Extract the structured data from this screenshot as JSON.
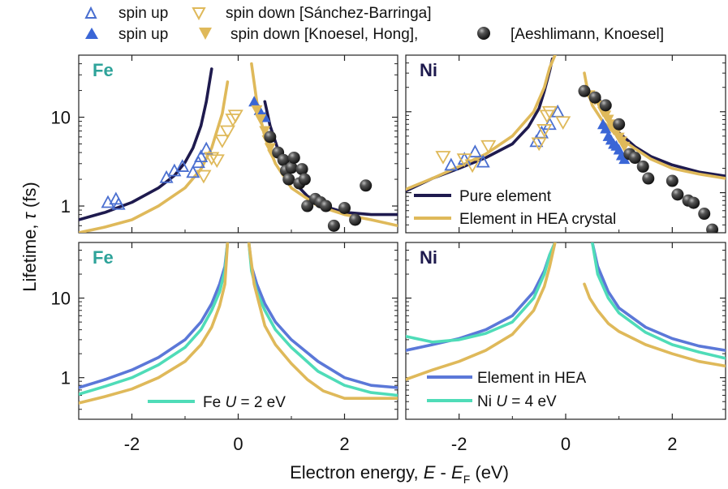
{
  "colors": {
    "open_blue": "#4a6fd0",
    "filled_blue": "#3a66d6",
    "gold": "#dfb95a",
    "navy": "#1e1a4e",
    "teal_line": "#4fdcb8",
    "blue_line": "#5b78d8",
    "sphere": "#2b2b2b",
    "fe_label": "#2ea39a",
    "ni_label": "#1e1a4e"
  },
  "top_legend": [
    {
      "marker": "open-triangle-up",
      "label": "spin up"
    },
    {
      "marker": "open-triangle-down",
      "label": "spin down [Sánchez-Barringa]"
    },
    {
      "marker": "filled-triangle-up",
      "label": "spin up"
    },
    {
      "marker": "filled-triangle-down",
      "label": "spin down [Knoesel, Hong],"
    },
    {
      "marker": "sphere",
      "label": "[Aeshlimann, Knoesel]"
    }
  ],
  "chart_data": [
    {
      "id": "fe_top",
      "type": "line",
      "panel_label": "Fe",
      "xlim": [
        -3,
        3
      ],
      "ylim": [
        0.5,
        50
      ],
      "yscale": "log",
      "xticks": [
        -2,
        0,
        2
      ],
      "yticks": [
        1,
        10
      ],
      "series": [
        {
          "name": "Pure element",
          "color": "navy",
          "segments": [
            {
              "x": [
                -3.0,
                -2.5,
                -2.0,
                -1.5,
                -1.2,
                -1.0,
                -0.85,
                -0.7,
                -0.6,
                -0.5
              ],
              "y": [
                0.7,
                0.85,
                1.1,
                1.6,
                2.2,
                3.1,
                4.5,
                8.0,
                15.0,
                35.0
              ]
            },
            {
              "x": [
                0.5,
                0.6,
                0.8,
                1.0,
                1.3,
                1.6,
                2.0,
                2.5,
                3.0
              ],
              "y": [
                15.0,
                8.0,
                3.5,
                2.0,
                1.3,
                1.0,
                0.85,
                0.8,
                0.8
              ]
            }
          ]
        },
        {
          "name": "Element in HEA crystal",
          "color": "gold",
          "segments": [
            {
              "x": [
                -3.0,
                -2.5,
                -2.0,
                -1.5,
                -1.0,
                -0.7,
                -0.5,
                -0.3,
                -0.2
              ],
              "y": [
                0.5,
                0.58,
                0.7,
                1.0,
                1.6,
                2.6,
                4.5,
                11.0,
                25.0
              ]
            },
            {
              "x": [
                0.25,
                0.35,
                0.5,
                0.7,
                1.0,
                1.5,
                2.0,
                2.5,
                3.0
              ],
              "y": [
                40.0,
                15.0,
                6.0,
                3.0,
                1.6,
                1.0,
                0.8,
                0.7,
                0.6
              ]
            }
          ]
        }
      ],
      "scatter": [
        {
          "name": "spin up (open)",
          "marker": "open-triangle-up",
          "color": "open_blue",
          "x": [
            -2.45,
            -2.3,
            -2.25,
            -1.35,
            -1.2,
            -1.05,
            -0.85,
            -0.75,
            -0.7,
            -0.6
          ],
          "y": [
            1.1,
            1.2,
            1.05,
            2.1,
            2.5,
            2.8,
            2.4,
            3.1,
            3.6,
            4.4
          ]
        },
        {
          "name": "spin down (open)",
          "marker": "open-triangle-down",
          "color": "gold",
          "x": [
            -0.65,
            -0.5,
            -0.4,
            -0.3,
            -0.2,
            -0.1,
            -0.05
          ],
          "y": [
            2.2,
            3.5,
            3.3,
            5.5,
            7.0,
            9.5,
            10.5
          ]
        },
        {
          "name": "spin up (filled)",
          "marker": "filled-triangle-up",
          "color": "filled_blue",
          "x": [
            0.3,
            0.4,
            0.5
          ],
          "y": [
            15.0,
            12.0,
            10.0
          ]
        },
        {
          "name": "spin down (filled)",
          "marker": "filled-triangle-down",
          "color": "gold",
          "x": [
            0.35,
            0.42,
            0.5,
            0.55,
            0.6,
            0.65
          ],
          "y": [
            12.0,
            9.5,
            7.0,
            5.5,
            4.5,
            3.8
          ]
        },
        {
          "name": "Aeshlimann, Knoesel",
          "marker": "sphere",
          "color": "sphere",
          "x": [
            0.6,
            0.75,
            0.85,
            0.9,
            0.95,
            1.0,
            1.05,
            1.15,
            1.2,
            1.25,
            1.3,
            1.45,
            1.55,
            1.65,
            1.8,
            2.0,
            2.2,
            2.4
          ],
          "y": [
            6.0,
            4.0,
            3.3,
            2.5,
            2.0,
            2.7,
            3.5,
            1.8,
            2.6,
            2.0,
            1.0,
            1.2,
            1.1,
            1.0,
            0.6,
            0.95,
            0.7,
            1.7
          ]
        }
      ]
    },
    {
      "id": "ni_top",
      "type": "line",
      "panel_label": "Ni",
      "xlim": [
        -3,
        3
      ],
      "ylim": [
        0.32,
        50
      ],
      "yscale": "log",
      "xticks": [
        -2,
        0,
        2
      ],
      "yticks": [
        1,
        10
      ],
      "legend": [
        "Pure element",
        "Element in HEA crystal"
      ],
      "series": [
        {
          "name": "Pure element",
          "color": "navy",
          "segments": [
            {
              "x": [
                -3.0,
                -2.5,
                -2.0,
                -1.5,
                -1.0,
                -0.7,
                -0.5,
                -0.4,
                -0.3,
                -0.25
              ],
              "y": [
                1.05,
                1.5,
                2.0,
                2.7,
                4.0,
                6.5,
                11.0,
                18.0,
                32.0,
                45.0
              ]
            },
            {
              "x": [
                0.6,
                0.7,
                0.8,
                1.0,
                1.3,
                1.6,
                2.0,
                2.5,
                3.0
              ],
              "y": [
                16.0,
                11.0,
                8.5,
                5.5,
                3.7,
                2.8,
                2.2,
                1.8,
                1.6
              ]
            }
          ]
        },
        {
          "name": "Element in HEA crystal",
          "color": "gold",
          "segments": [
            {
              "x": [
                -3.0,
                -2.5,
                -2.0,
                -1.5,
                -1.0,
                -0.6,
                -0.4,
                -0.3,
                -0.2
              ],
              "y": [
                1.1,
                1.5,
                2.1,
                3.0,
                5.0,
                10.0,
                20.0,
                35.0,
                50.0
              ]
            },
            {
              "x": [
                0.35,
                0.4,
                0.5,
                0.7,
                1.0,
                1.3,
                1.6,
                2.0,
                2.5,
                3.0
              ],
              "y": [
                30.0,
                20.0,
                12.0,
                7.5,
                4.8,
                3.5,
                2.6,
                2.0,
                1.7,
                1.5
              ]
            }
          ]
        }
      ],
      "scatter": [
        {
          "name": "spin up (open)",
          "marker": "open-triangle-up",
          "color": "open_blue",
          "x": [
            -2.15,
            -1.9,
            -1.7,
            -1.55,
            -0.55,
            -0.45,
            -0.3,
            -0.15
          ],
          "y": [
            2.2,
            2.6,
            3.2,
            2.4,
            4.3,
            5.5,
            7.0,
            10.0
          ]
        },
        {
          "name": "spin down (open)",
          "marker": "open-triangle-down",
          "color": "gold",
          "x": [
            -2.3,
            -1.9,
            -1.75,
            -1.45,
            -0.5,
            -0.4,
            -0.35,
            -0.3,
            -0.05
          ],
          "y": [
            2.8,
            2.6,
            2.2,
            3.8,
            4.1,
            6.0,
            9.0,
            10.0,
            7.5
          ]
        },
        {
          "name": "spin up (filled)",
          "marker": "filled-triangle-up",
          "color": "filled_blue",
          "x": [
            0.7,
            0.75,
            0.8,
            0.85,
            0.9,
            0.95,
            1.0,
            1.05,
            1.1
          ],
          "y": [
            7.0,
            6.2,
            5.0,
            4.5,
            4.0,
            3.8,
            3.4,
            2.9,
            2.6
          ]
        },
        {
          "name": "spin down (filled)",
          "marker": "filled-triangle-down",
          "color": "gold",
          "x": [
            0.45,
            0.55,
            0.65,
            0.7,
            0.75,
            0.8,
            0.85,
            0.9,
            0.95,
            1.0,
            1.05,
            1.1
          ],
          "y": [
            16.0,
            14.0,
            12.0,
            10.0,
            9.0,
            8.0,
            7.0,
            6.0,
            5.5,
            4.8,
            4.3,
            3.7
          ]
        },
        {
          "name": "Aeshlimann, Knoesel",
          "marker": "sphere",
          "color": "sphere",
          "x": [
            0.35,
            0.55,
            0.75,
            1.0,
            1.2,
            1.3,
            1.45,
            1.55,
            2.0,
            2.1,
            2.3,
            2.4,
            2.6,
            2.75
          ],
          "y": [
            18.0,
            15.0,
            12.0,
            7.0,
            3.0,
            2.7,
            2.1,
            1.5,
            1.4,
            0.95,
            0.8,
            0.75,
            0.55,
            0.35
          ]
        }
      ]
    },
    {
      "id": "fe_bottom",
      "type": "line",
      "panel_label": "Fe",
      "xlim": [
        -3,
        3
      ],
      "ylim": [
        0.3,
        50
      ],
      "yscale": "log",
      "xticks": [
        -2,
        0,
        2
      ],
      "yticks": [
        1,
        10
      ],
      "legend": [
        "Fe U = 2 eV"
      ],
      "series": [
        {
          "name": "Element in HEA",
          "color": "blue_line",
          "segments": [
            {
              "x": [
                -3.0,
                -2.5,
                -2.0,
                -1.5,
                -1.0,
                -0.7,
                -0.5,
                -0.35,
                -0.25,
                -0.2
              ],
              "y": [
                0.75,
                0.95,
                1.25,
                1.8,
                3.0,
                5.0,
                8.5,
                15.0,
                25.0,
                50.0
              ]
            },
            {
              "x": [
                0.2,
                0.25,
                0.35,
                0.5,
                0.7,
                1.0,
                1.5,
                2.0,
                2.5,
                3.0
              ],
              "y": [
                50.0,
                25.0,
                15.0,
                8.5,
                5.0,
                3.0,
                1.6,
                1.0,
                0.8,
                0.75
              ]
            }
          ]
        },
        {
          "name": "Fe U = 2 eV",
          "color": "teal_line",
          "segments": [
            {
              "x": [
                -3.0,
                -2.5,
                -2.0,
                -1.5,
                -1.0,
                -0.7,
                -0.5,
                -0.35,
                -0.25,
                -0.2
              ],
              "y": [
                0.62,
                0.78,
                1.0,
                1.45,
                2.4,
                4.0,
                7.0,
                12.0,
                22.0,
                50.0
              ]
            },
            {
              "x": [
                0.2,
                0.25,
                0.35,
                0.5,
                0.7,
                1.0,
                1.5,
                2.0,
                2.5,
                3.0
              ],
              "y": [
                50.0,
                22.0,
                12.0,
                7.0,
                4.0,
                2.4,
                1.2,
                0.8,
                0.65,
                0.6
              ]
            }
          ]
        },
        {
          "name": "Element in HEA crystal",
          "color": "gold",
          "segments": [
            {
              "x": [
                -3.0,
                -2.5,
                -2.0,
                -1.5,
                -1.0,
                -0.7,
                -0.5,
                -0.35,
                -0.25,
                -0.2
              ],
              "y": [
                0.48,
                0.58,
                0.72,
                1.0,
                1.6,
                2.6,
                4.3,
                8.0,
                15.0,
                50.0
              ]
            },
            {
              "x": [
                0.2,
                0.3,
                0.5,
                0.7,
                1.0,
                1.3,
                1.6,
                2.0,
                2.5,
                3.0
              ],
              "y": [
                50.0,
                15.0,
                4.5,
                2.6,
                1.5,
                0.95,
                0.68,
                0.55,
                0.55,
                0.55
              ]
            }
          ]
        }
      ]
    },
    {
      "id": "ni_bottom",
      "type": "line",
      "panel_label": "Ni",
      "xlim": [
        -3,
        3
      ],
      "ylim": [
        0.3,
        50
      ],
      "yscale": "log",
      "xticks": [
        -2,
        0,
        2
      ],
      "yticks": [
        1,
        10
      ],
      "legend": [
        "Element in HEA",
        "Ni U = 4 eV"
      ],
      "series": [
        {
          "name": "Element in HEA",
          "color": "blue_line",
          "segments": [
            {
              "x": [
                -3.0,
                -2.5,
                -2.0,
                -1.5,
                -1.0,
                -0.6,
                -0.4,
                -0.3,
                -0.2
              ],
              "y": [
                2.2,
                2.6,
                3.1,
                4.0,
                6.0,
                12.0,
                22.0,
                35.0,
                50.0
              ]
            },
            {
              "x": [
                0.5,
                0.6,
                0.8,
                1.0,
                1.5,
                2.0,
                2.5,
                3.0
              ],
              "y": [
                50.0,
                25.0,
                12.0,
                7.5,
                4.3,
                3.1,
                2.5,
                2.2
              ]
            }
          ]
        },
        {
          "name": "Ni U = 4 eV",
          "color": "teal_line",
          "segments": [
            {
              "x": [
                -3.0,
                -2.5,
                -2.0,
                -1.5,
                -1.0,
                -0.6,
                -0.4,
                -0.3,
                -0.2
              ],
              "y": [
                3.3,
                2.8,
                3.0,
                3.6,
                5.0,
                10.0,
                20.0,
                35.0,
                50.0
              ]
            },
            {
              "x": [
                0.5,
                0.6,
                0.8,
                1.0,
                1.5,
                2.0,
                2.5,
                3.0
              ],
              "y": [
                50.0,
                20.0,
                10.0,
                6.5,
                3.7,
                2.6,
                2.1,
                1.75
              ]
            }
          ]
        },
        {
          "name": "Element in HEA crystal",
          "color": "gold",
          "segments": [
            {
              "x": [
                -3.0,
                -2.5,
                -2.0,
                -1.5,
                -1.0,
                -0.6,
                -0.4,
                -0.3,
                -0.2
              ],
              "y": [
                0.95,
                1.25,
                1.6,
                2.2,
                3.5,
                7.0,
                14.0,
                25.0,
                50.0
              ]
            },
            {
              "x": [
                0.35,
                0.45,
                0.6,
                0.8,
                1.0,
                1.5,
                2.0,
                2.5,
                3.0
              ],
              "y": [
                15.0,
                10.0,
                7.0,
                4.8,
                3.8,
                2.6,
                2.0,
                1.6,
                1.4
              ]
            }
          ]
        }
      ]
    }
  ],
  "axes": {
    "ylabel_prefix": "Lifetime, ",
    "ylabel_symbol": "τ",
    "ylabel_suffix": " (fs)",
    "xlabel_prefix": "Electron energy, ",
    "xlabel_E": "E",
    "xlabel_minus": " - ",
    "xlabel_sub": "F",
    "xlabel_suffix": " (eV)"
  },
  "ni_top_legend": [
    "Pure element",
    "Element in HEA crystal"
  ],
  "fe_bottom_legend": {
    "prefix": "Fe ",
    "U": "U",
    "suffix": " = 2 eV"
  },
  "ni_bottom_legend": {
    "first": "Element in HEA",
    "second_prefix": "Ni ",
    "U": "U",
    "second_suffix": " = 4 eV"
  }
}
